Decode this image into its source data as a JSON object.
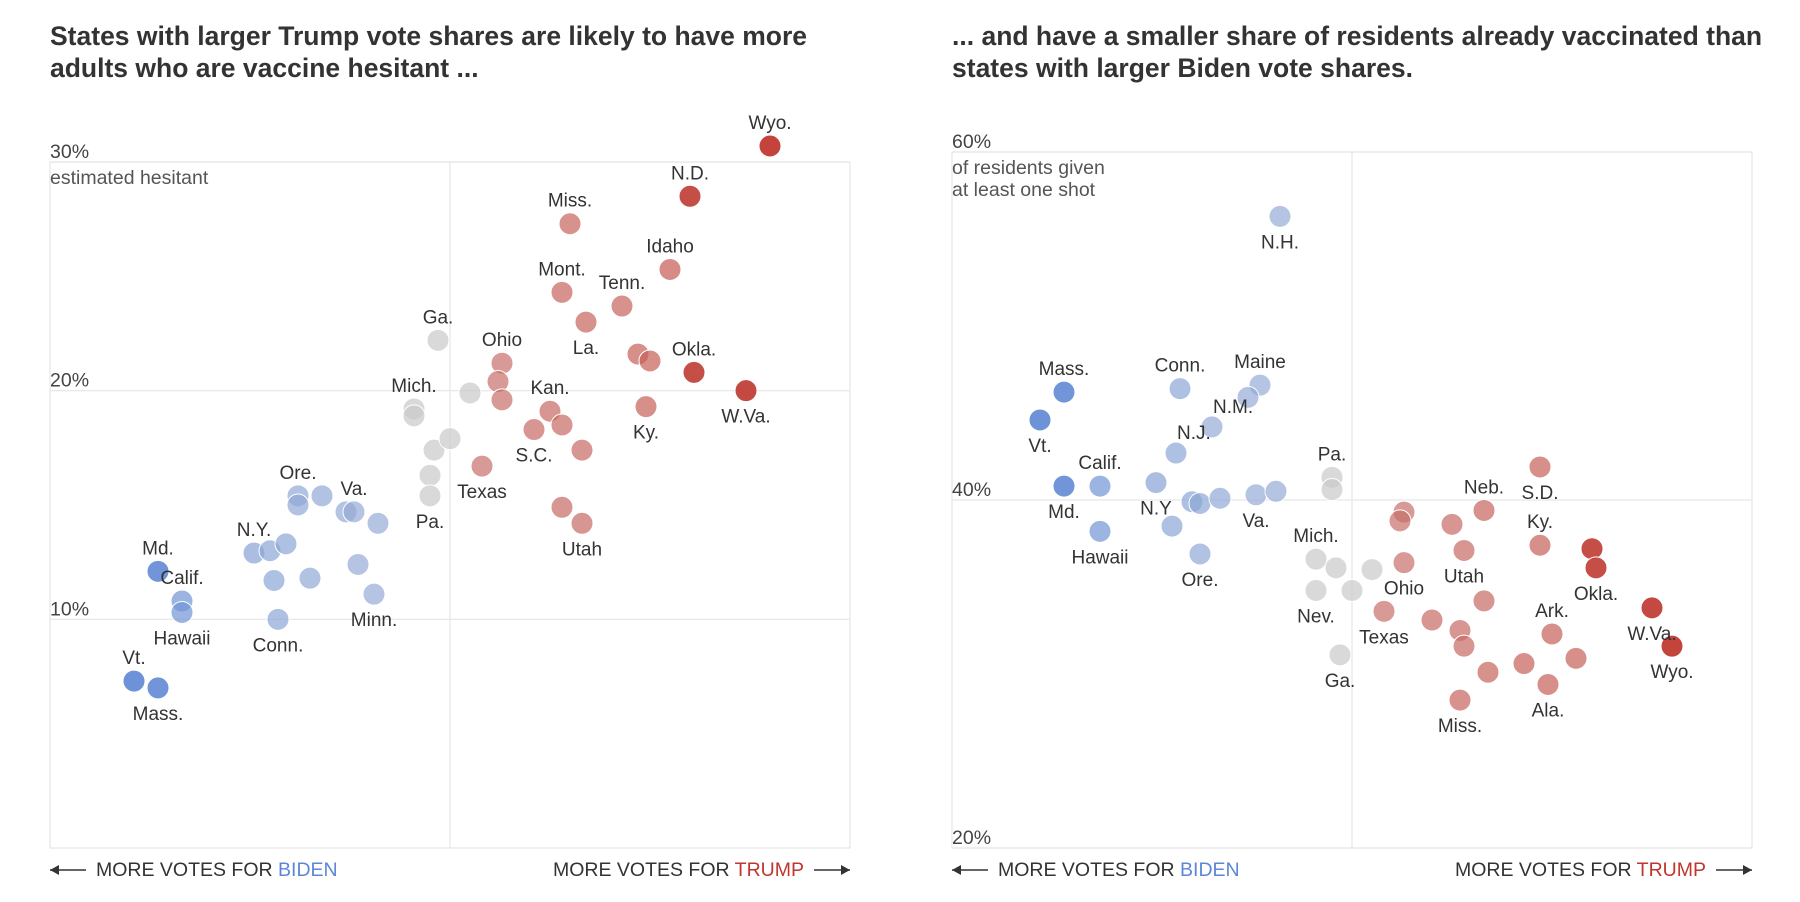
{
  "colors": {
    "biden": "#5d87d6",
    "trump": "#c0352d",
    "neutral": "#c9c9c9",
    "grid": "#e6e6e6",
    "axis": "#333333"
  },
  "footer": {
    "left_prefix": "MORE VOTES FOR ",
    "left_name": "BIDEN",
    "right_prefix": "MORE VOTES FOR ",
    "right_name": "TRUMP"
  },
  "chart_data": [
    {
      "type": "scatter",
      "title": "States with larger Trump vote shares are likely to have more adults who are vaccine hesitant ...",
      "xlabel": "MORE VOTES FOR BIDEN ← → MORE VOTES FOR TRUMP",
      "ylabel": "estimated hesitant",
      "ylim": [
        0,
        30
      ],
      "xlim": [
        -1,
        1
      ],
      "yticks": [
        {
          "v": 30,
          "label": "30%"
        },
        {
          "v": 20,
          "label": "20%"
        },
        {
          "v": 10,
          "label": "10%"
        }
      ],
      "grid": true,
      "points": [
        {
          "name": "Vt.",
          "x": -0.79,
          "y": 7.3,
          "lean": -0.9,
          "label": "above"
        },
        {
          "name": "Mass.",
          "x": -0.73,
          "y": 7.0,
          "lean": -0.85,
          "label": "below"
        },
        {
          "name": "Md.",
          "x": -0.73,
          "y": 12.1,
          "lean": -0.85,
          "label": "above"
        },
        {
          "name": "Calif.",
          "x": -0.67,
          "y": 10.8,
          "lean": -0.75,
          "label": "above"
        },
        {
          "name": "Hawaii",
          "x": -0.67,
          "y": 10.3,
          "lean": -0.75,
          "label": "below"
        },
        {
          "name": "N.Y.",
          "x": -0.49,
          "y": 12.9,
          "lean": -0.45,
          "label": "above"
        },
        {
          "name": "",
          "x": -0.45,
          "y": 13.0,
          "lean": -0.4,
          "label": "none"
        },
        {
          "name": "",
          "x": -0.41,
          "y": 13.3,
          "lean": -0.4,
          "label": "none"
        },
        {
          "name": "",
          "x": -0.44,
          "y": 11.7,
          "lean": -0.4,
          "label": "none"
        },
        {
          "name": "Conn.",
          "x": -0.43,
          "y": 10.0,
          "lean": -0.4,
          "label": "below"
        },
        {
          "name": "Ore.",
          "x": -0.38,
          "y": 15.4,
          "lean": -0.35,
          "label": "above"
        },
        {
          "name": "",
          "x": -0.38,
          "y": 15.0,
          "lean": -0.35,
          "label": "none"
        },
        {
          "name": "",
          "x": -0.32,
          "y": 15.4,
          "lean": -0.35,
          "label": "none"
        },
        {
          "name": "",
          "x": -0.35,
          "y": 11.8,
          "lean": -0.35,
          "label": "none"
        },
        {
          "name": "",
          "x": -0.26,
          "y": 14.7,
          "lean": -0.3,
          "label": "none"
        },
        {
          "name": "Va.",
          "x": -0.24,
          "y": 14.7,
          "lean": -0.3,
          "label": "above"
        },
        {
          "name": "",
          "x": -0.23,
          "y": 12.4,
          "lean": -0.3,
          "label": "none"
        },
        {
          "name": "",
          "x": -0.18,
          "y": 14.2,
          "lean": -0.3,
          "label": "none"
        },
        {
          "name": "Minn.",
          "x": -0.19,
          "y": 11.1,
          "lean": -0.3,
          "label": "below"
        },
        {
          "name": "Ga.",
          "x": -0.03,
          "y": 22.2,
          "lean": 0,
          "label": "above"
        },
        {
          "name": "Mich.",
          "x": -0.09,
          "y": 19.2,
          "lean": 0,
          "label": "above"
        },
        {
          "name": "",
          "x": -0.09,
          "y": 18.9,
          "lean": 0,
          "label": "none"
        },
        {
          "name": "",
          "x": -0.04,
          "y": 17.4,
          "lean": 0,
          "label": "none"
        },
        {
          "name": "",
          "x": 0.0,
          "y": 17.9,
          "lean": 0,
          "label": "none"
        },
        {
          "name": "",
          "x": -0.05,
          "y": 16.3,
          "lean": 0,
          "label": "none"
        },
        {
          "name": "Pa.",
          "x": -0.05,
          "y": 15.4,
          "lean": 0,
          "label": "below"
        },
        {
          "name": "",
          "x": 0.05,
          "y": 19.9,
          "lean": 0,
          "label": "none"
        },
        {
          "name": "Ohio",
          "x": 0.13,
          "y": 21.2,
          "lean": 0.45,
          "label": "above"
        },
        {
          "name": "",
          "x": 0.12,
          "y": 20.4,
          "lean": 0.45,
          "label": "none"
        },
        {
          "name": "",
          "x": 0.13,
          "y": 19.6,
          "lean": 0.45,
          "label": "none"
        },
        {
          "name": "Texas",
          "x": 0.08,
          "y": 16.7,
          "lean": 0.45,
          "label": "below"
        },
        {
          "name": "Kan.",
          "x": 0.25,
          "y": 19.1,
          "lean": 0.5,
          "label": "above"
        },
        {
          "name": "S.C.",
          "x": 0.21,
          "y": 18.3,
          "lean": 0.5,
          "label": "below"
        },
        {
          "name": "",
          "x": 0.28,
          "y": 18.5,
          "lean": 0.5,
          "label": "none"
        },
        {
          "name": "",
          "x": 0.33,
          "y": 17.4,
          "lean": 0.5,
          "label": "none"
        },
        {
          "name": "",
          "x": 0.28,
          "y": 14.9,
          "lean": 0.5,
          "label": "none"
        },
        {
          "name": "Utah",
          "x": 0.33,
          "y": 14.2,
          "lean": 0.5,
          "label": "below"
        },
        {
          "name": "Miss.",
          "x": 0.3,
          "y": 27.3,
          "lean": 0.55,
          "label": "above"
        },
        {
          "name": "Mont.",
          "x": 0.28,
          "y": 24.3,
          "lean": 0.55,
          "label": "above"
        },
        {
          "name": "La.",
          "x": 0.34,
          "y": 23.0,
          "lean": 0.55,
          "label": "below"
        },
        {
          "name": "Tenn.",
          "x": 0.43,
          "y": 23.7,
          "lean": 0.55,
          "label": "above"
        },
        {
          "name": "Idaho",
          "x": 0.55,
          "y": 25.3,
          "lean": 0.65,
          "label": "above"
        },
        {
          "name": "",
          "x": 0.47,
          "y": 21.6,
          "lean": 0.6,
          "label": "none"
        },
        {
          "name": "",
          "x": 0.5,
          "y": 21.3,
          "lean": 0.6,
          "label": "none"
        },
        {
          "name": "Ky.",
          "x": 0.49,
          "y": 19.3,
          "lean": 0.6,
          "label": "below"
        },
        {
          "name": "N.D.",
          "x": 0.6,
          "y": 28.5,
          "lean": 0.85,
          "label": "above"
        },
        {
          "name": "Okla.",
          "x": 0.61,
          "y": 20.8,
          "lean": 0.85,
          "label": "above"
        },
        {
          "name": "W.Va.",
          "x": 0.74,
          "y": 20.0,
          "lean": 0.9,
          "label": "below"
        },
        {
          "name": "Wyo.",
          "x": 0.8,
          "y": 30.7,
          "lean": 0.95,
          "label": "above"
        }
      ]
    },
    {
      "type": "scatter",
      "title": "... and have a smaller share of residents already vaccinated than states with larger Biden vote shares.",
      "xlabel": "MORE VOTES FOR BIDEN ← → MORE VOTES FOR TRUMP",
      "ylabel": "of residents given at least one shot",
      "ylim": [
        20,
        60
      ],
      "xlim": [
        -1,
        1
      ],
      "yticks": [
        {
          "v": 60,
          "label": "60%"
        },
        {
          "v": 40,
          "label": "40%"
        },
        {
          "v": 20,
          "label": "20%"
        }
      ],
      "grid": true,
      "points": [
        {
          "name": "N.H.",
          "x": -0.18,
          "y": 56.3,
          "lean": -0.3,
          "label": "below"
        },
        {
          "name": "Mass.",
          "x": -0.72,
          "y": 46.2,
          "lean": -0.85,
          "label": "above"
        },
        {
          "name": "Vt.",
          "x": -0.78,
          "y": 44.6,
          "lean": -0.9,
          "label": "below"
        },
        {
          "name": "Conn.",
          "x": -0.43,
          "y": 46.4,
          "lean": -0.4,
          "label": "above"
        },
        {
          "name": "Maine",
          "x": -0.23,
          "y": 46.6,
          "lean": -0.3,
          "label": "above"
        },
        {
          "name": "",
          "x": -0.26,
          "y": 45.9,
          "lean": -0.3,
          "label": "none"
        },
        {
          "name": "N.M.",
          "x": -0.35,
          "y": 44.2,
          "lean": -0.3,
          "label": "right"
        },
        {
          "name": "N.J.",
          "x": -0.44,
          "y": 42.7,
          "lean": -0.4,
          "label": "right"
        },
        {
          "name": "Calif.",
          "x": -0.63,
          "y": 40.8,
          "lean": -0.75,
          "label": "above"
        },
        {
          "name": "Md.",
          "x": -0.72,
          "y": 40.8,
          "lean": -0.85,
          "label": "below"
        },
        {
          "name": "Hawaii",
          "x": -0.63,
          "y": 38.2,
          "lean": -0.75,
          "label": "below"
        },
        {
          "name": "N.Y",
          "x": -0.49,
          "y": 41.0,
          "lean": -0.45,
          "label": "below"
        },
        {
          "name": "",
          "x": -0.4,
          "y": 39.9,
          "lean": -0.4,
          "label": "none"
        },
        {
          "name": "",
          "x": -0.38,
          "y": 39.8,
          "lean": -0.4,
          "label": "none"
        },
        {
          "name": "",
          "x": -0.33,
          "y": 40.1,
          "lean": -0.35,
          "label": "none"
        },
        {
          "name": "Va.",
          "x": -0.24,
          "y": 40.3,
          "lean": -0.3,
          "label": "below"
        },
        {
          "name": "",
          "x": -0.19,
          "y": 40.5,
          "lean": -0.3,
          "label": "none"
        },
        {
          "name": "",
          "x": -0.45,
          "y": 38.5,
          "lean": -0.4,
          "label": "none"
        },
        {
          "name": "Ore.",
          "x": -0.38,
          "y": 36.9,
          "lean": -0.35,
          "label": "below"
        },
        {
          "name": "Pa.",
          "x": -0.05,
          "y": 41.3,
          "lean": 0,
          "label": "above"
        },
        {
          "name": "",
          "x": -0.05,
          "y": 40.6,
          "lean": 0,
          "label": "none"
        },
        {
          "name": "Mich.",
          "x": -0.09,
          "y": 36.6,
          "lean": 0,
          "label": "above"
        },
        {
          "name": "",
          "x": -0.04,
          "y": 36.1,
          "lean": 0,
          "label": "none"
        },
        {
          "name": "",
          "x": 0.05,
          "y": 36.0,
          "lean": 0,
          "label": "none"
        },
        {
          "name": "Nev.",
          "x": -0.09,
          "y": 34.8,
          "lean": 0,
          "label": "below"
        },
        {
          "name": "",
          "x": 0.0,
          "y": 34.8,
          "lean": 0,
          "label": "none"
        },
        {
          "name": "Ga.",
          "x": -0.03,
          "y": 31.1,
          "lean": 0,
          "label": "below"
        },
        {
          "name": "",
          "x": 0.13,
          "y": 39.3,
          "lean": 0.45,
          "label": "none"
        },
        {
          "name": "",
          "x": 0.12,
          "y": 38.8,
          "lean": 0.45,
          "label": "none"
        },
        {
          "name": "Ohio",
          "x": 0.13,
          "y": 36.4,
          "lean": 0.45,
          "label": "below"
        },
        {
          "name": "Texas",
          "x": 0.08,
          "y": 33.6,
          "lean": 0.45,
          "label": "below"
        },
        {
          "name": "",
          "x": 0.2,
          "y": 33.1,
          "lean": 0.5,
          "label": "none"
        },
        {
          "name": "Neb.",
          "x": 0.33,
          "y": 39.4,
          "lean": 0.55,
          "label": "above"
        },
        {
          "name": "",
          "x": 0.25,
          "y": 38.6,
          "lean": 0.5,
          "label": "none"
        },
        {
          "name": "Utah",
          "x": 0.28,
          "y": 37.1,
          "lean": 0.5,
          "label": "below"
        },
        {
          "name": "",
          "x": 0.33,
          "y": 34.2,
          "lean": 0.5,
          "label": "none"
        },
        {
          "name": "",
          "x": 0.27,
          "y": 32.5,
          "lean": 0.5,
          "label": "none"
        },
        {
          "name": "",
          "x": 0.28,
          "y": 31.6,
          "lean": 0.5,
          "label": "none"
        },
        {
          "name": "",
          "x": 0.34,
          "y": 30.1,
          "lean": 0.55,
          "label": "none"
        },
        {
          "name": "Miss.",
          "x": 0.27,
          "y": 28.5,
          "lean": 0.55,
          "label": "below"
        },
        {
          "name": "S.D.",
          "x": 0.47,
          "y": 41.9,
          "lean": 0.6,
          "label": "below"
        },
        {
          "name": "Ky.",
          "x": 0.47,
          "y": 37.4,
          "lean": 0.6,
          "label": "above"
        },
        {
          "name": "Ark.",
          "x": 0.5,
          "y": 32.3,
          "lean": 0.6,
          "label": "above"
        },
        {
          "name": "",
          "x": 0.43,
          "y": 30.6,
          "lean": 0.6,
          "label": "none"
        },
        {
          "name": "Ala.",
          "x": 0.49,
          "y": 29.4,
          "lean": 0.6,
          "label": "below"
        },
        {
          "name": "",
          "x": 0.56,
          "y": 30.9,
          "lean": 0.6,
          "label": "none"
        },
        {
          "name": "",
          "x": 0.6,
          "y": 37.2,
          "lean": 0.85,
          "label": "none"
        },
        {
          "name": "Okla.",
          "x": 0.61,
          "y": 36.1,
          "lean": 0.85,
          "label": "below"
        },
        {
          "name": "W.Va.",
          "x": 0.75,
          "y": 33.8,
          "lean": 0.9,
          "label": "below"
        },
        {
          "name": "Wyo.",
          "x": 0.8,
          "y": 31.6,
          "lean": 0.95,
          "label": "below"
        }
      ]
    }
  ]
}
